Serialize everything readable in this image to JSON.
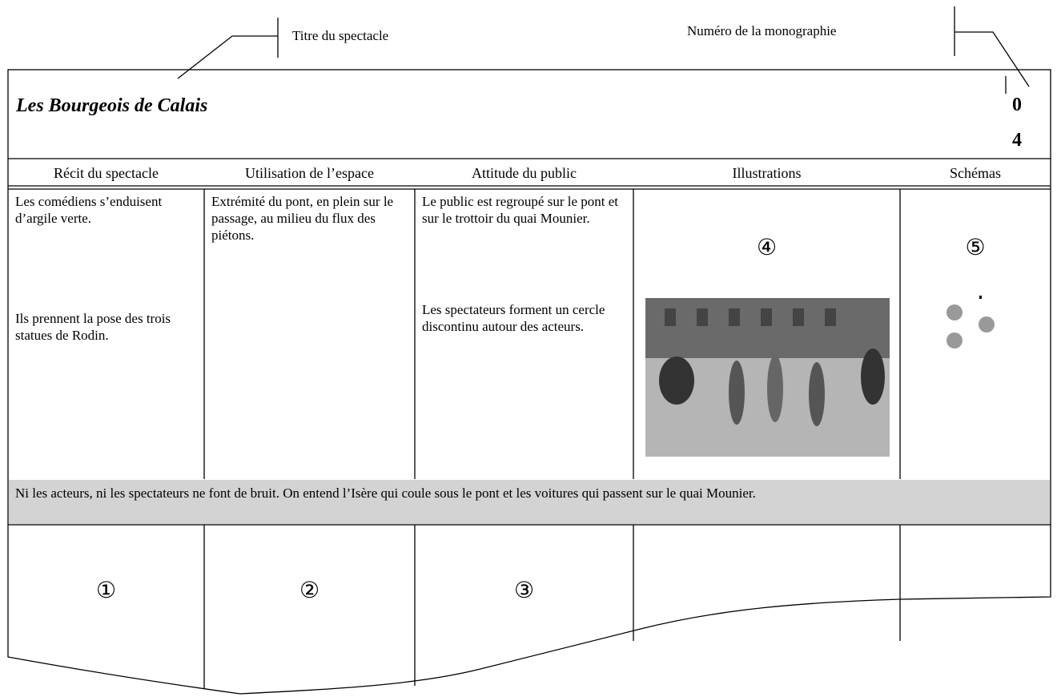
{
  "annotations": {
    "title_label": "Titre du spectacle",
    "number_label": "Numéro de la monographie"
  },
  "header": {
    "title": "Les Bourgeois de Calais",
    "number": [
      "0",
      "4"
    ]
  },
  "columns": [
    "Récit du spectacle",
    "Utilisation de l’espace",
    "Attitude du public",
    "Illustrations",
    "Schémas"
  ],
  "cells": [
    [
      "Les comédiens s’enduisent d’argile verte.",
      "Ils prennent la pose des trois statues de Rodin."
    ],
    [
      "Extrémité du pont, en plein sur le passage, au milieu du flux des piétons."
    ],
    [
      "Le public est regroupé sur le pont et sur le trottoir du quai Mounier.",
      "Les spectateurs forment un cercle discontinu autour des acteurs."
    ],
    [
      "④"
    ],
    [
      "⑤"
    ]
  ],
  "sound_note": "Ni les acteurs, ni les spectateurs ne font de bruit. On entend l’Isère qui coule sous le pont et les voitures qui passent sur le quai Mounier.",
  "column_markers": [
    "①",
    "②",
    "③"
  ]
}
